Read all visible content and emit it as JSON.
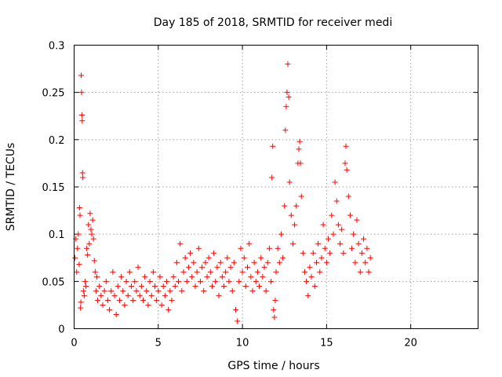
{
  "chart_data": {
    "type": "scatter",
    "title": "Day 185 of 2018, SRMTID for receiver medi",
    "xlabel": "GPS time / hours",
    "ylabel": "SRMTID / TECUs",
    "xlim": [
      0,
      24
    ],
    "ylim": [
      0,
      0.3
    ],
    "xticks": [
      0,
      5,
      10,
      15,
      20
    ],
    "xtick_labels": [
      "0",
      "5",
      "10",
      "15",
      "20"
    ],
    "yticks": [
      0,
      0.05,
      0.1,
      0.15,
      0.2,
      0.25,
      0.3
    ],
    "ytick_labels": [
      "0",
      "0.05",
      "0.1",
      "0.15",
      "0.2",
      "0.25",
      "0.3"
    ],
    "grid": true,
    "marker": "+",
    "color": "#ff0000",
    "series": [
      {
        "name": "medi",
        "points": [
          [
            0.05,
            0.075
          ],
          [
            0.1,
            0.095
          ],
          [
            0.15,
            0.06
          ],
          [
            0.2,
            0.085
          ],
          [
            0.25,
            0.1
          ],
          [
            0.3,
            0.068
          ],
          [
            0.32,
            0.128
          ],
          [
            0.35,
            0.12
          ],
          [
            0.38,
            0.022
          ],
          [
            0.4,
            0.028
          ],
          [
            0.42,
            0.268
          ],
          [
            0.44,
            0.25
          ],
          [
            0.46,
            0.226
          ],
          [
            0.48,
            0.22
          ],
          [
            0.5,
            0.165
          ],
          [
            0.52,
            0.16
          ],
          [
            0.55,
            0.04
          ],
          [
            0.6,
            0.035
          ],
          [
            0.65,
            0.05
          ],
          [
            0.7,
            0.045
          ],
          [
            0.75,
            0.085
          ],
          [
            0.8,
            0.078
          ],
          [
            0.85,
            0.11
          ],
          [
            0.9,
            0.09
          ],
          [
            0.95,
            0.122
          ],
          [
            1.0,
            0.105
          ],
          [
            1.05,
            0.1
          ],
          [
            1.1,
            0.115
          ],
          [
            1.15,
            0.095
          ],
          [
            1.2,
            0.072
          ],
          [
            1.25,
            0.06
          ],
          [
            1.3,
            0.04
          ],
          [
            1.35,
            0.055
          ],
          [
            1.4,
            0.03
          ],
          [
            1.5,
            0.045
          ],
          [
            1.6,
            0.035
          ],
          [
            1.7,
            0.025
          ],
          [
            1.8,
            0.04
          ],
          [
            1.9,
            0.05
          ],
          [
            2.0,
            0.03
          ],
          [
            2.1,
            0.02
          ],
          [
            2.2,
            0.04
          ],
          [
            2.3,
            0.06
          ],
          [
            2.4,
            0.035
          ],
          [
            2.5,
            0.015
          ],
          [
            2.6,
            0.045
          ],
          [
            2.7,
            0.03
          ],
          [
            2.8,
            0.055
          ],
          [
            2.9,
            0.04
          ],
          [
            3.0,
            0.025
          ],
          [
            3.1,
            0.05
          ],
          [
            3.2,
            0.035
          ],
          [
            3.3,
            0.06
          ],
          [
            3.4,
            0.045
          ],
          [
            3.5,
            0.03
          ],
          [
            3.6,
            0.05
          ],
          [
            3.7,
            0.04
          ],
          [
            3.8,
            0.065
          ],
          [
            3.9,
            0.035
          ],
          [
            4.0,
            0.045
          ],
          [
            4.1,
            0.03
          ],
          [
            4.2,
            0.055
          ],
          [
            4.3,
            0.04
          ],
          [
            4.4,
            0.025
          ],
          [
            4.5,
            0.05
          ],
          [
            4.6,
            0.035
          ],
          [
            4.7,
            0.06
          ],
          [
            4.8,
            0.045
          ],
          [
            4.9,
            0.03
          ],
          [
            5.0,
            0.04
          ],
          [
            5.1,
            0.055
          ],
          [
            5.2,
            0.025
          ],
          [
            5.3,
            0.045
          ],
          [
            5.4,
            0.035
          ],
          [
            5.5,
            0.05
          ],
          [
            5.6,
            0.02
          ],
          [
            5.7,
            0.04
          ],
          [
            5.8,
            0.03
          ],
          [
            5.9,
            0.055
          ],
          [
            6.0,
            0.045
          ],
          [
            6.1,
            0.07
          ],
          [
            6.2,
            0.05
          ],
          [
            6.3,
            0.09
          ],
          [
            6.4,
            0.04
          ],
          [
            6.5,
            0.06
          ],
          [
            6.6,
            0.075
          ],
          [
            6.7,
            0.05
          ],
          [
            6.8,
            0.065
          ],
          [
            6.9,
            0.08
          ],
          [
            7.0,
            0.055
          ],
          [
            7.1,
            0.07
          ],
          [
            7.2,
            0.045
          ],
          [
            7.3,
            0.06
          ],
          [
            7.4,
            0.085
          ],
          [
            7.5,
            0.05
          ],
          [
            7.6,
            0.065
          ],
          [
            7.7,
            0.04
          ],
          [
            7.8,
            0.07
          ],
          [
            7.9,
            0.055
          ],
          [
            8.0,
            0.075
          ],
          [
            8.1,
            0.06
          ],
          [
            8.2,
            0.045
          ],
          [
            8.3,
            0.08
          ],
          [
            8.4,
            0.05
          ],
          [
            8.5,
            0.065
          ],
          [
            8.6,
            0.035
          ],
          [
            8.7,
            0.07
          ],
          [
            8.8,
            0.055
          ],
          [
            8.9,
            0.045
          ],
          [
            9.0,
            0.06
          ],
          [
            9.1,
            0.075
          ],
          [
            9.2,
            0.05
          ],
          [
            9.3,
            0.065
          ],
          [
            9.4,
            0.04
          ],
          [
            9.5,
            0.07
          ],
          [
            9.6,
            0.02
          ],
          [
            9.7,
            0.008
          ],
          [
            9.8,
            0.05
          ],
          [
            9.9,
            0.085
          ],
          [
            10.0,
            0.06
          ],
          [
            10.1,
            0.075
          ],
          [
            10.2,
            0.045
          ],
          [
            10.3,
            0.065
          ],
          [
            10.4,
            0.09
          ],
          [
            10.5,
            0.055
          ],
          [
            10.6,
            0.04
          ],
          [
            10.7,
            0.07
          ],
          [
            10.8,
            0.05
          ],
          [
            10.9,
            0.06
          ],
          [
            11.0,
            0.045
          ],
          [
            11.1,
            0.075
          ],
          [
            11.2,
            0.055
          ],
          [
            11.3,
            0.065
          ],
          [
            11.4,
            0.04
          ],
          [
            11.5,
            0.07
          ],
          [
            11.6,
            0.085
          ],
          [
            11.7,
            0.05
          ],
          [
            11.75,
            0.16
          ],
          [
            11.8,
            0.193
          ],
          [
            11.85,
            0.02
          ],
          [
            11.9,
            0.012
          ],
          [
            11.95,
            0.03
          ],
          [
            12.0,
            0.06
          ],
          [
            12.1,
            0.085
          ],
          [
            12.2,
            0.07
          ],
          [
            12.3,
            0.1
          ],
          [
            12.4,
            0.075
          ],
          [
            12.5,
            0.13
          ],
          [
            12.55,
            0.21
          ],
          [
            12.6,
            0.235
          ],
          [
            12.65,
            0.25
          ],
          [
            12.7,
            0.28
          ],
          [
            12.75,
            0.245
          ],
          [
            12.8,
            0.155
          ],
          [
            12.9,
            0.12
          ],
          [
            13.0,
            0.09
          ],
          [
            13.1,
            0.11
          ],
          [
            13.2,
            0.13
          ],
          [
            13.3,
            0.175
          ],
          [
            13.35,
            0.19
          ],
          [
            13.4,
            0.198
          ],
          [
            13.45,
            0.175
          ],
          [
            13.5,
            0.14
          ],
          [
            13.6,
            0.08
          ],
          [
            13.7,
            0.06
          ],
          [
            13.8,
            0.05
          ],
          [
            13.9,
            0.035
          ],
          [
            14.0,
            0.065
          ],
          [
            14.1,
            0.055
          ],
          [
            14.2,
            0.08
          ],
          [
            14.3,
            0.045
          ],
          [
            14.4,
            0.07
          ],
          [
            14.5,
            0.09
          ],
          [
            14.6,
            0.06
          ],
          [
            14.7,
            0.075
          ],
          [
            14.8,
            0.11
          ],
          [
            14.9,
            0.085
          ],
          [
            15.0,
            0.07
          ],
          [
            15.1,
            0.095
          ],
          [
            15.2,
            0.08
          ],
          [
            15.3,
            0.12
          ],
          [
            15.4,
            0.1
          ],
          [
            15.5,
            0.155
          ],
          [
            15.6,
            0.135
          ],
          [
            15.7,
            0.11
          ],
          [
            15.8,
            0.09
          ],
          [
            15.9,
            0.105
          ],
          [
            16.0,
            0.08
          ],
          [
            16.1,
            0.175
          ],
          [
            16.15,
            0.193
          ],
          [
            16.2,
            0.168
          ],
          [
            16.3,
            0.14
          ],
          [
            16.4,
            0.12
          ],
          [
            16.5,
            0.085
          ],
          [
            16.6,
            0.1
          ],
          [
            16.7,
            0.07
          ],
          [
            16.8,
            0.115
          ],
          [
            16.9,
            0.09
          ],
          [
            17.0,
            0.06
          ],
          [
            17.1,
            0.08
          ],
          [
            17.2,
            0.095
          ],
          [
            17.3,
            0.07
          ],
          [
            17.4,
            0.085
          ],
          [
            17.5,
            0.06
          ],
          [
            17.6,
            0.075
          ]
        ]
      }
    ]
  }
}
